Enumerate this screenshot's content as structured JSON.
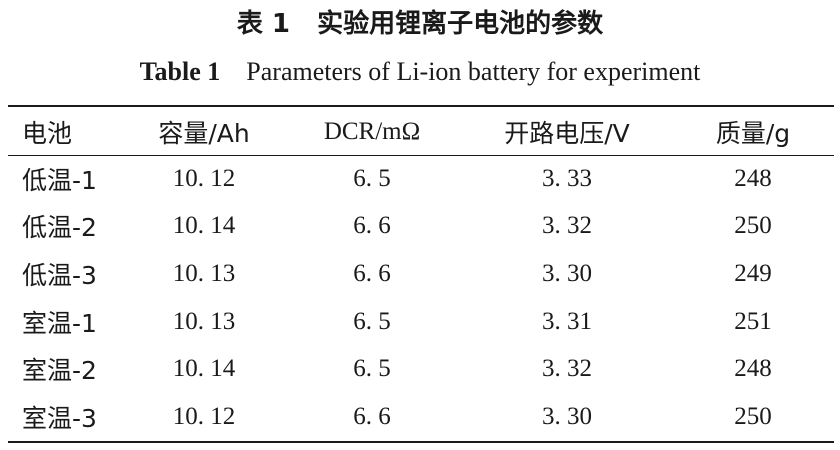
{
  "caption": {
    "cn_label": "表 1",
    "cn_title": "实验用锂离子电池的参数",
    "en_label": "Table 1",
    "en_title": "Parameters of Li-ion battery for experiment"
  },
  "table": {
    "headers": [
      "电池",
      "容量/Ah",
      "DCR/mΩ",
      "开路电压/V",
      "质量/g"
    ],
    "rows": [
      [
        "低温-1",
        "10. 12",
        "6. 5",
        "3. 33",
        "248"
      ],
      [
        "低温-2",
        "10. 14",
        "6. 6",
        "3. 32",
        "250"
      ],
      [
        "低温-3",
        "10. 13",
        "6. 6",
        "3. 30",
        "249"
      ],
      [
        "室温-1",
        "10. 13",
        "6. 5",
        "3. 31",
        "251"
      ],
      [
        "室温-2",
        "10. 14",
        "6. 5",
        "3. 32",
        "248"
      ],
      [
        "室温-3",
        "10. 12",
        "6. 6",
        "3. 30",
        "250"
      ]
    ]
  }
}
